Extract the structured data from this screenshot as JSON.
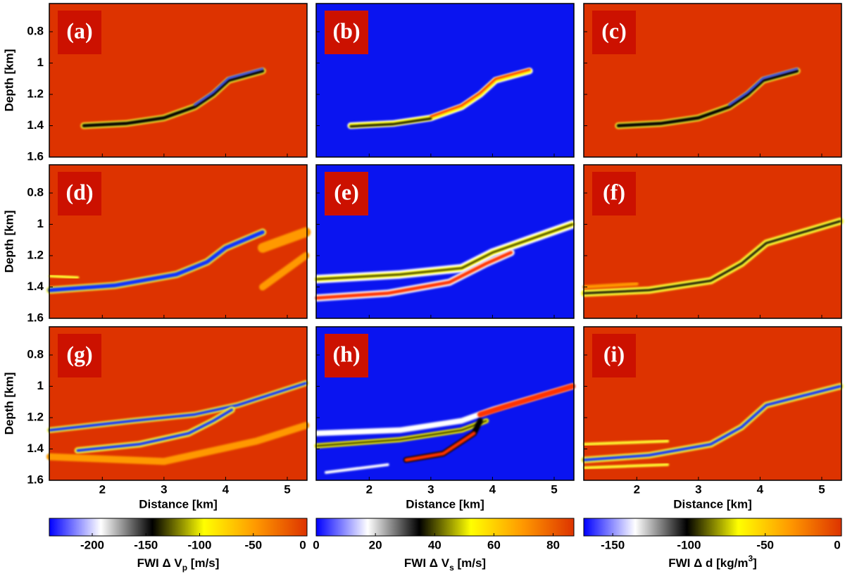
{
  "panels": [
    {
      "label": "(a)",
      "background": "#dd3300"
    },
    {
      "label": "(b)",
      "background": "#0a14f0"
    },
    {
      "label": "(c)",
      "background": "#dd3300"
    },
    {
      "label": "(d)",
      "background": "#dd3300"
    },
    {
      "label": "(e)",
      "background": "#0a14f0"
    },
    {
      "label": "(f)",
      "background": "#dd3300"
    },
    {
      "label": "(g)",
      "background": "#dd3300"
    },
    {
      "label": "(h)",
      "background": "#0a14f0"
    },
    {
      "label": "(i)",
      "background": "#dd3300"
    }
  ],
  "y_axis": {
    "label": "Depth [km]",
    "lim": [
      0.62,
      1.6
    ],
    "ticks": [
      0.8,
      1,
      1.2,
      1.4,
      1.6
    ]
  },
  "x_axis": {
    "label": "Distance [km]",
    "lim": [
      1.14,
      5.32
    ],
    "ticks": [
      2,
      3,
      4,
      5
    ]
  },
  "colormap": [
    "#0000ff",
    "#ffffff",
    "#000000",
    "#ffff00",
    "#ff9900",
    "#dd3300"
  ],
  "colorbars": [
    {
      "label_parts": [
        "FWI Δ V",
        "p",
        " [m/s]"
      ],
      "lim": [
        -240,
        0
      ],
      "ticks": [
        -200,
        -150,
        -100,
        -50,
        0
      ]
    },
    {
      "label_parts": [
        "FWI Δ V",
        "s",
        " [m/s]"
      ],
      "lim": [
        0,
        87
      ],
      "ticks": [
        0,
        20,
        40,
        60,
        80
      ]
    },
    {
      "label_parts": [
        "FWI Δ d [kg/m",
        "3",
        "]"
      ],
      "lim": [
        -169,
        0
      ],
      "ticks": [
        -150,
        -100,
        -50,
        0
      ]
    }
  ]
}
